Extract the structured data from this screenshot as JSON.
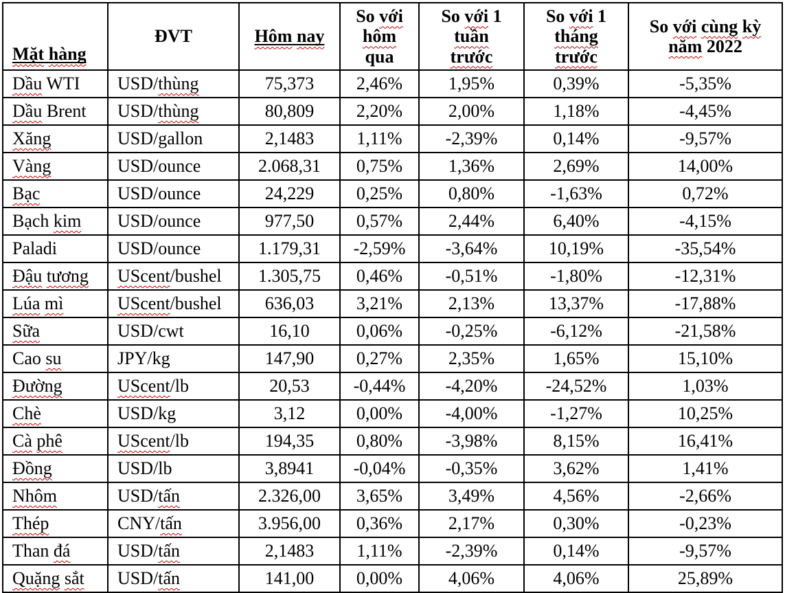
{
  "colors": {
    "background": "#FFFFFF",
    "text": "#000000",
    "border": "#000000",
    "spellcheck_wavy": "#C00000"
  },
  "table": {
    "header": [
      {
        "label": "Mặt hàng",
        "align": "bottom-left",
        "segments": [
          {
            "t": "Mặt",
            "u": true,
            "w": true
          },
          {
            "t": " ",
            "u": true
          },
          {
            "t": "hàng",
            "u": true,
            "w": true
          }
        ]
      },
      {
        "label": "ĐVT",
        "segments": [
          {
            "t": "ĐVT"
          }
        ]
      },
      {
        "label": "Hôm nay",
        "segments": [
          {
            "t": "Hôm",
            "u": true,
            "w": true
          },
          {
            "t": " ",
            "u": true
          },
          {
            "t": "nay",
            "u": true,
            "w": true
          }
        ]
      },
      {
        "label": "So với hôm qua",
        "segments": [
          {
            "t": "So "
          },
          {
            "t": "với",
            "w": true
          },
          {
            "br": true
          },
          {
            "t": "hôm",
            "w": true
          },
          {
            "br": true
          },
          {
            "t": "qua"
          }
        ]
      },
      {
        "label": "So với 1 tuần trước",
        "segments": [
          {
            "t": "So "
          },
          {
            "t": "với",
            "w": true
          },
          {
            "t": " 1"
          },
          {
            "br": true
          },
          {
            "t": "tuần",
            "w": true
          },
          {
            "br": true
          },
          {
            "t": "trước",
            "w": true
          }
        ]
      },
      {
        "label": "So với 1 tháng trước",
        "segments": [
          {
            "t": "So "
          },
          {
            "t": "với",
            "w": true
          },
          {
            "t": " 1"
          },
          {
            "br": true
          },
          {
            "t": "tháng",
            "w": true
          },
          {
            "br": true
          },
          {
            "t": "trước",
            "w": true
          }
        ]
      },
      {
        "label": "So với cùng kỳ năm 2022",
        "segments": [
          {
            "t": "So "
          },
          {
            "t": "với",
            "w": true
          },
          {
            "t": " "
          },
          {
            "t": "cùng",
            "w": true
          },
          {
            "t": " "
          },
          {
            "t": "kỳ",
            "w": true
          },
          {
            "br": true
          },
          {
            "t": "năm",
            "w": true
          },
          {
            "t": " 2022"
          }
        ]
      }
    ],
    "rows": [
      {
        "name": {
          "text": "Dầu WTI",
          "segments": [
            {
              "t": "Dầu",
              "w": true
            },
            {
              "t": " WTI"
            }
          ]
        },
        "unit": {
          "text": "USD/thùng",
          "segments": [
            {
              "t": "USD/"
            },
            {
              "t": "thùng",
              "w": true
            }
          ]
        },
        "today": "75,373",
        "vs_yesterday": "2,46%",
        "vs_week": "1,95%",
        "vs_month": "0,39%",
        "vs_2022": "-5,35%"
      },
      {
        "name": {
          "text": "Dầu Brent",
          "segments": [
            {
              "t": "Dầu",
              "w": true
            },
            {
              "t": " Brent"
            }
          ]
        },
        "unit": {
          "text": "USD/thùng",
          "segments": [
            {
              "t": "USD/"
            },
            {
              "t": "thùng",
              "w": true
            }
          ]
        },
        "today": "80,809",
        "vs_yesterday": "2,20%",
        "vs_week": "2,00%",
        "vs_month": "1,18%",
        "vs_2022": "-4,45%"
      },
      {
        "name": {
          "text": "Xăng",
          "segments": [
            {
              "t": "Xăng",
              "w": true
            }
          ]
        },
        "unit": {
          "text": "USD/gallon",
          "segments": [
            {
              "t": "USD/gallon"
            }
          ]
        },
        "today": "2,1483",
        "vs_yesterday": "1,11%",
        "vs_week": "-2,39%",
        "vs_month": "0,14%",
        "vs_2022": "-9,57%"
      },
      {
        "name": {
          "text": "Vàng",
          "segments": [
            {
              "t": "Vàng",
              "w": true
            }
          ]
        },
        "unit": {
          "text": "USD/ounce",
          "segments": [
            {
              "t": "USD/ounce"
            }
          ]
        },
        "today": "2.068,31",
        "vs_yesterday": "0,75%",
        "vs_week": "1,36%",
        "vs_month": "2,69%",
        "vs_2022": "14,00%"
      },
      {
        "name": {
          "text": "Bạc",
          "segments": [
            {
              "t": "Bạc",
              "w": true
            }
          ]
        },
        "unit": {
          "text": "USD/ounce",
          "segments": [
            {
              "t": "USD/ounce"
            }
          ]
        },
        "today": "24,229",
        "vs_yesterday": "0,25%",
        "vs_week": "0,80%",
        "vs_month": "-1,63%",
        "vs_2022": "0,72%"
      },
      {
        "name": {
          "text": "Bạch kim",
          "segments": [
            {
              "t": "Bạch "
            },
            {
              "t": "kim",
              "w": true
            }
          ]
        },
        "unit": {
          "text": "USD/ounce",
          "segments": [
            {
              "t": "USD/ounce"
            }
          ]
        },
        "today": "977,50",
        "vs_yesterday": "0,57%",
        "vs_week": "2,44%",
        "vs_month": "6,40%",
        "vs_2022": "-4,15%"
      },
      {
        "name": {
          "text": "Paladi",
          "segments": [
            {
              "t": "Paladi"
            }
          ]
        },
        "unit": {
          "text": "USD/ounce",
          "segments": [
            {
              "t": "USD/ounce"
            }
          ]
        },
        "today": "1.179,31",
        "vs_yesterday": "-2,59%",
        "vs_week": "-3,64%",
        "vs_month": "10,19%",
        "vs_2022": "-35,54%"
      },
      {
        "name": {
          "text": "Đậu tương",
          "segments": [
            {
              "t": "Đậu",
              "w": true
            },
            {
              "t": " "
            },
            {
              "t": "tương",
              "w": true
            }
          ]
        },
        "unit": {
          "text": "UScent/bushel",
          "segments": [
            {
              "t": "UScent",
              "w": true
            },
            {
              "t": "/bushel"
            }
          ]
        },
        "today": "1.305,75",
        "vs_yesterday": "0,46%",
        "vs_week": "-0,51%",
        "vs_month": "-1,80%",
        "vs_2022": "-12,31%"
      },
      {
        "name": {
          "text": "Lúa mì",
          "segments": [
            {
              "t": "Lúa",
              "w": true
            },
            {
              "t": " "
            },
            {
              "t": "mì",
              "w": true
            }
          ]
        },
        "unit": {
          "text": "UScent/bushel",
          "segments": [
            {
              "t": "UScent",
              "w": true
            },
            {
              "t": "/bushel"
            }
          ]
        },
        "today": "636,03",
        "vs_yesterday": "3,21%",
        "vs_week": "2,13%",
        "vs_month": "13,37%",
        "vs_2022": "-17,88%"
      },
      {
        "name": {
          "text": "Sữa",
          "segments": [
            {
              "t": "Sữa",
              "w": true
            }
          ]
        },
        "unit": {
          "text": "USD/cwt",
          "segments": [
            {
              "t": "USD/cwt"
            }
          ]
        },
        "today": "16,10",
        "vs_yesterday": "0,06%",
        "vs_week": "-0,25%",
        "vs_month": "-6,12%",
        "vs_2022": "-21,58%"
      },
      {
        "name": {
          "text": "Cao su",
          "segments": [
            {
              "t": "Cao "
            },
            {
              "t": "su",
              "w": true
            }
          ]
        },
        "unit": {
          "text": "JPY/kg",
          "segments": [
            {
              "t": "JPY/kg"
            }
          ]
        },
        "today": "147,90",
        "vs_yesterday": "0,27%",
        "vs_week": "2,35%",
        "vs_month": "1,65%",
        "vs_2022": "15,10%"
      },
      {
        "name": {
          "text": "Đường",
          "segments": [
            {
              "t": "Đường",
              "w": true
            }
          ]
        },
        "unit": {
          "text": "UScent/lb",
          "segments": [
            {
              "t": "UScent",
              "w": true
            },
            {
              "t": "/lb"
            }
          ]
        },
        "today": "20,53",
        "vs_yesterday": "-0,44%",
        "vs_week": "-4,20%",
        "vs_month": "-24,52%",
        "vs_2022": "1,03%"
      },
      {
        "name": {
          "text": "Chè",
          "segments": [
            {
              "t": "Chè",
              "w": true
            }
          ]
        },
        "unit": {
          "text": "USD/kg",
          "segments": [
            {
              "t": "USD/kg"
            }
          ]
        },
        "today": "3,12",
        "vs_yesterday": "0,00%",
        "vs_week": "-4,00%",
        "vs_month": "-1,27%",
        "vs_2022": "10,25%"
      },
      {
        "name": {
          "text": "Cà phê",
          "segments": [
            {
              "t": "Cà",
              "w": true
            },
            {
              "t": " "
            },
            {
              "t": "phê",
              "w": true
            }
          ]
        },
        "unit": {
          "text": "UScent/lb",
          "segments": [
            {
              "t": "UScent",
              "w": true
            },
            {
              "t": "/lb"
            }
          ]
        },
        "today": "194,35",
        "vs_yesterday": "0,80%",
        "vs_week": "-3,98%",
        "vs_month": "8,15%",
        "vs_2022": "16,41%"
      },
      {
        "name": {
          "text": "Đồng",
          "segments": [
            {
              "t": "Đồng",
              "w": true
            }
          ]
        },
        "unit": {
          "text": "USD/lb",
          "segments": [
            {
              "t": "USD/lb"
            }
          ]
        },
        "today": "3,8941",
        "vs_yesterday": "-0,04%",
        "vs_week": "-0,35%",
        "vs_month": "3,62%",
        "vs_2022": "1,41%"
      },
      {
        "name": {
          "text": "Nhôm",
          "segments": [
            {
              "t": "Nhôm",
              "w": true
            }
          ]
        },
        "unit": {
          "text": "USD/tấn",
          "segments": [
            {
              "t": "USD/"
            },
            {
              "t": "tấn",
              "w": true
            }
          ]
        },
        "today": "2.326,00",
        "vs_yesterday": "3,65%",
        "vs_week": "3,49%",
        "vs_month": "4,56%",
        "vs_2022": "-2,66%"
      },
      {
        "name": {
          "text": "Thép",
          "segments": [
            {
              "t": "Thép",
              "w": true
            }
          ]
        },
        "unit": {
          "text": "CNY/tấn",
          "segments": [
            {
              "t": "CNY/"
            },
            {
              "t": "tấn",
              "w": true
            }
          ]
        },
        "today": "3.956,00",
        "vs_yesterday": "0,36%",
        "vs_week": "2,17%",
        "vs_month": "0,30%",
        "vs_2022": "-0,23%"
      },
      {
        "name": {
          "text": "Than đá",
          "segments": [
            {
              "t": "Than "
            },
            {
              "t": "đá",
              "w": true
            }
          ]
        },
        "unit": {
          "text": "USD/tấn",
          "segments": [
            {
              "t": "USD/"
            },
            {
              "t": "tấn",
              "w": true
            }
          ]
        },
        "today": "2,1483",
        "vs_yesterday": "1,11%",
        "vs_week": "-2,39%",
        "vs_month": "0,14%",
        "vs_2022": "-9,57%"
      },
      {
        "name": {
          "text": "Quặng sắt",
          "segments": [
            {
              "t": "Quặng",
              "w": true
            },
            {
              "t": " "
            },
            {
              "t": "sắt",
              "w": true
            }
          ]
        },
        "unit": {
          "text": "USD/tấn",
          "segments": [
            {
              "t": "USD/"
            },
            {
              "t": "tấn",
              "w": true
            }
          ]
        },
        "today": "141,00",
        "vs_yesterday": "0,00%",
        "vs_week": "4,06%",
        "vs_month": "4,06%",
        "vs_2022": "25,89%"
      }
    ]
  }
}
